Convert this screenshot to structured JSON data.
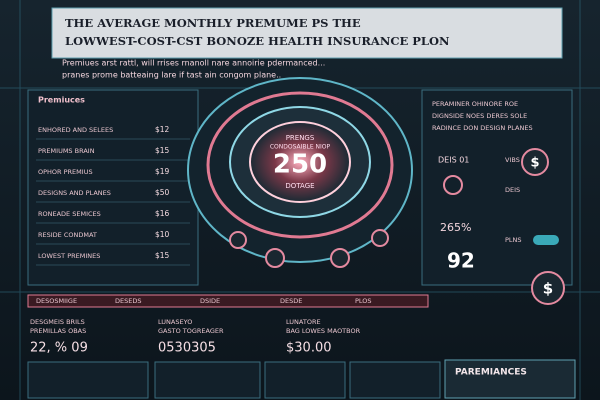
{
  "header": {
    "title_lines": [
      "THE AVERAGE MONTHLY PREMUME PS THE",
      "LOWWEST-COST-CST BONOZE HEALTH INSURANCE PLON"
    ],
    "subtitle_lines": [
      "Premiues arst rattl, will rrises rnanoll nare annoirie pdermanced...",
      "pranes prome batteaing lare if tast ain congom plane.."
    ]
  },
  "left_panel": {
    "heading": "Premiuces",
    "rows": [
      {
        "label": "ENHORED AND SELEES",
        "value": "$12"
      },
      {
        "label": "PREMIUMS BRAIN",
        "value": "$15"
      },
      {
        "label": "OPHOR PREMIUS",
        "value": "$19"
      },
      {
        "label": "DESIGNS AND PLANES",
        "value": "$50"
      },
      {
        "label": "RONEADE SEMICES",
        "value": "$16"
      },
      {
        "label": "RESIDE CONDMAT",
        "value": "$10"
      },
      {
        "label": "LOWEST PREMINES",
        "value": "$15"
      }
    ]
  },
  "dial": {
    "label_top": "PRENGS",
    "sublabel": "CONDOSAIBLE NIOP",
    "value": "250",
    "label_bottom": "DOTAGE"
  },
  "right_panel": {
    "lines": [
      "PERAMINER OHINORE ROE",
      "DIGNSIDE NOES DERES SOLE",
      "RADINCE DON DESIGN PLANES"
    ],
    "items": [
      "DEIS 01",
      "265%",
      "92"
    ],
    "icons": [
      "$",
      "$"
    ],
    "notes": [
      "VIBS",
      "DEIS",
      "PLNS"
    ]
  },
  "table": {
    "headers": [
      "DESOSMIIGE",
      "DESEDS",
      "DSIDE",
      "DESDE",
      "PLOS"
    ]
  },
  "stats": [
    {
      "label": "DESGMEIS BRILS",
      "sublabel": "PREMILLAS OBAS",
      "value": "22, % 09"
    },
    {
      "label": "LUNASEYO",
      "sublabel": "GASTO TOGREAGER",
      "value": "0530305"
    },
    {
      "label": "LUNATORE",
      "sublabel": "BAG LOWES MAOTBOR",
      "value": "$30.00"
    }
  ],
  "footer": {
    "heading": "PAREMIANCES"
  }
}
